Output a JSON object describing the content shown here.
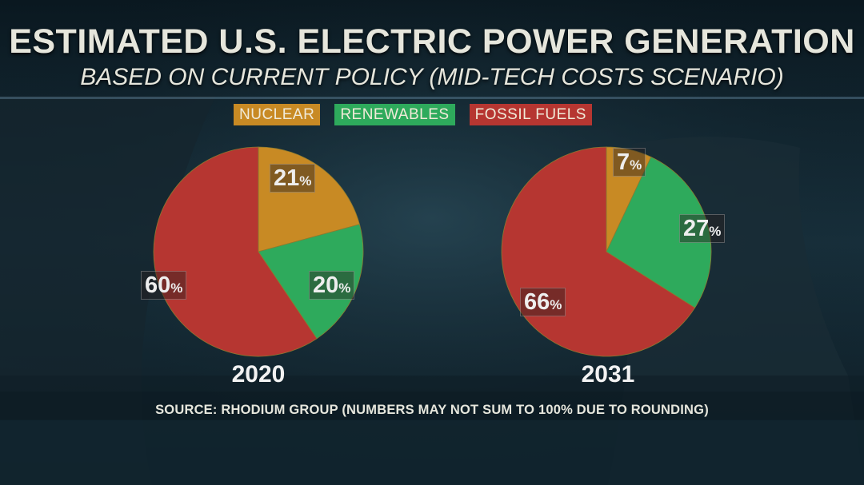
{
  "header": {
    "title": "ESTIMATED U.S. ELECTRIC POWER GENERATION",
    "subtitle": "BASED ON CURRENT POLICY (MID-TECH COSTS SCENARIO)"
  },
  "legend": {
    "nuclear": "NUCLEAR",
    "renewables": "RENEWABLES",
    "fossil": "FOSSIL FUELS"
  },
  "colors": {
    "nuclear": "#c88a24",
    "renewables": "#2eaa5c",
    "fossil": "#b63631"
  },
  "percent_sign": "%",
  "source": "SOURCE: RHODIUM GROUP (NUMBERS MAY NOT SUM TO 100% DUE TO ROUNDING)",
  "chart_data": [
    {
      "type": "pie",
      "title": "2020",
      "categories": [
        "NUCLEAR",
        "RENEWABLES",
        "FOSSIL FUELS"
      ],
      "values": [
        21,
        20,
        60
      ],
      "labels": [
        "21",
        "20",
        "60"
      ]
    },
    {
      "type": "pie",
      "title": "2031",
      "categories": [
        "NUCLEAR",
        "RENEWABLES",
        "FOSSIL FUELS"
      ],
      "values": [
        7,
        27,
        66
      ],
      "labels": [
        "7",
        "27",
        "66"
      ]
    }
  ]
}
